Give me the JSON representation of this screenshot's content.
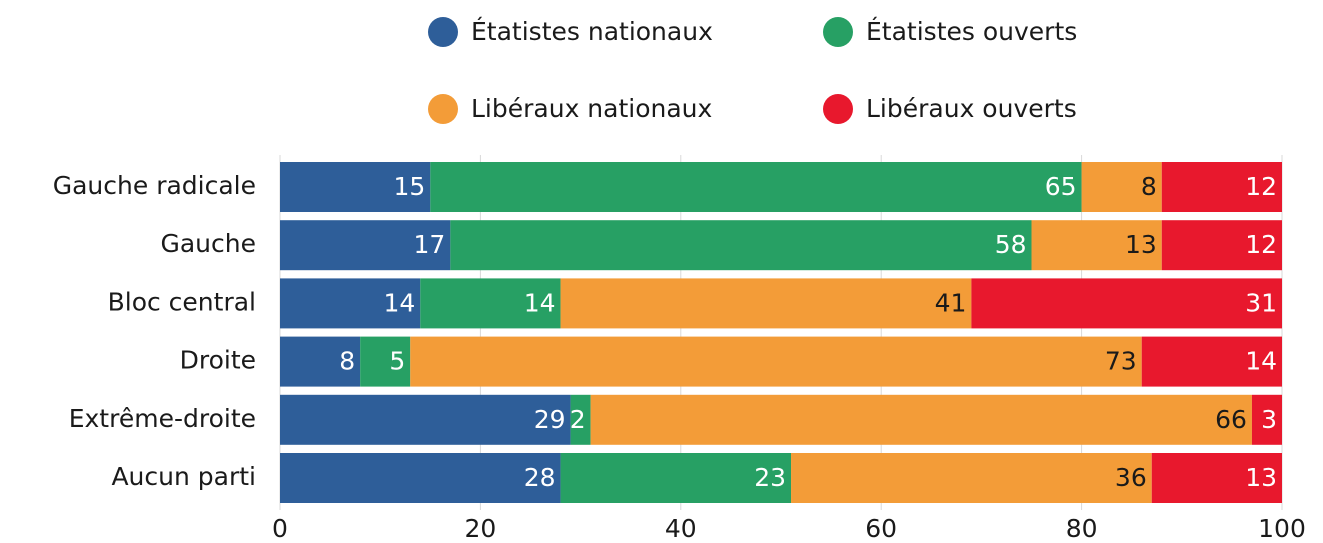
{
  "chart_data": {
    "type": "stacked_barh",
    "categories": [
      "Gauche radicale",
      "Gauche",
      "Bloc central",
      "Droite",
      "Extrême-droite",
      "Aucun parti"
    ],
    "series": [
      {
        "name": "Étatistes nationaux",
        "color": "#2e5e99",
        "values": [
          15,
          17,
          14,
          8,
          29,
          28
        ]
      },
      {
        "name": "Étatistes ouverts",
        "color": "#27a064",
        "values": [
          65,
          58,
          14,
          5,
          2,
          23
        ]
      },
      {
        "name": "Libéraux nationaux",
        "color": "#f39c38",
        "values": [
          8,
          13,
          41,
          73,
          66,
          36
        ]
      },
      {
        "name": "Libéraux ouverts",
        "color": "#e8182d",
        "values": [
          12,
          12,
          31,
          14,
          3,
          13
        ]
      }
    ],
    "xlim": [
      0,
      100
    ],
    "xticks": [
      0,
      20,
      40,
      60,
      80,
      100
    ],
    "grid": true,
    "legend": "top"
  }
}
